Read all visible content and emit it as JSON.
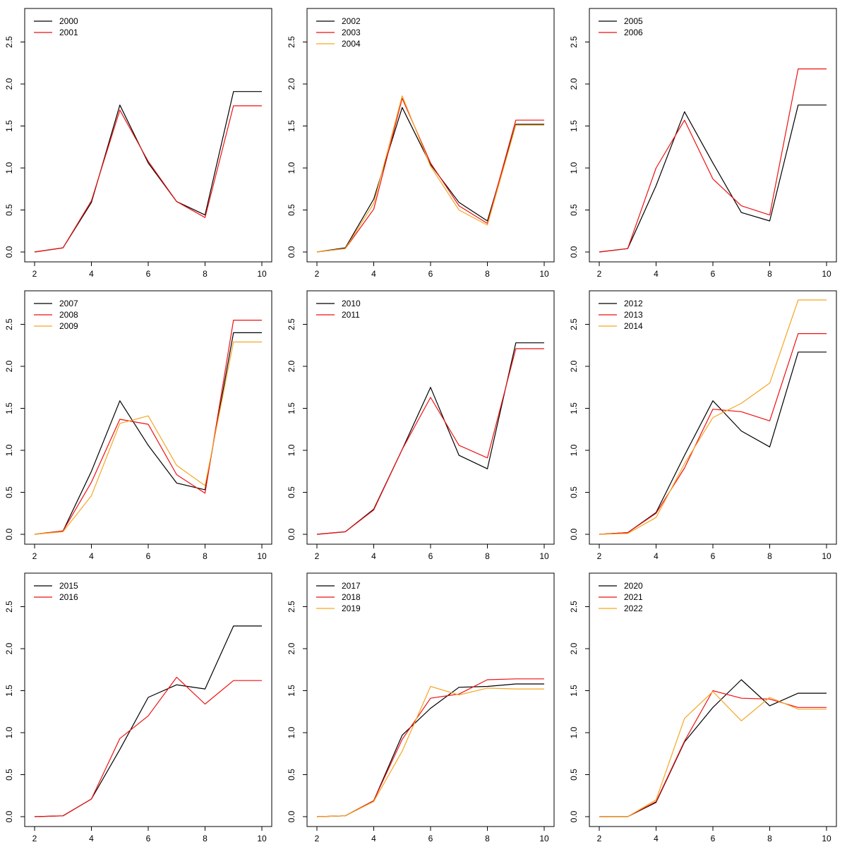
{
  "chart_data": [
    {
      "type": "line",
      "x": [
        2,
        3,
        4,
        5,
        6,
        7,
        8,
        9,
        10
      ],
      "xlim": [
        2,
        10
      ],
      "ylim": [
        0,
        2.8
      ],
      "xticks": [
        "2",
        "4",
        "6",
        "8",
        "10"
      ],
      "yticks": [
        "0.0",
        "0.5",
        "1.0",
        "1.5",
        "2.0",
        "2.5"
      ],
      "legend_position": "top-left",
      "series": [
        {
          "name": "2000",
          "color": "#000000",
          "values": [
            0.0,
            0.05,
            0.59,
            1.75,
            1.06,
            0.6,
            0.44,
            1.91,
            1.91
          ]
        },
        {
          "name": "2001",
          "color": "#ee1111",
          "values": [
            0.0,
            0.05,
            0.61,
            1.69,
            1.08,
            0.6,
            0.41,
            1.74,
            1.74
          ]
        }
      ]
    },
    {
      "type": "line",
      "x": [
        2,
        3,
        4,
        5,
        6,
        7,
        8,
        9,
        10
      ],
      "xlim": [
        2,
        10
      ],
      "ylim": [
        0,
        2.8
      ],
      "xticks": [
        "2",
        "4",
        "6",
        "8",
        "10"
      ],
      "yticks": [
        "0.0",
        "0.5",
        "1.0",
        "1.5",
        "2.0",
        "2.5"
      ],
      "legend_position": "top-left",
      "series": [
        {
          "name": "2002",
          "color": "#000000",
          "values": [
            0.0,
            0.05,
            0.63,
            1.72,
            1.04,
            0.59,
            0.37,
            1.52,
            1.52
          ]
        },
        {
          "name": "2003",
          "color": "#ee1111",
          "values": [
            0.0,
            0.04,
            0.51,
            1.83,
            1.06,
            0.55,
            0.34,
            1.57,
            1.57
          ]
        },
        {
          "name": "2004",
          "color": "#f5a623",
          "values": [
            0.0,
            0.04,
            0.58,
            1.86,
            1.02,
            0.5,
            0.32,
            1.51,
            1.51
          ]
        }
      ]
    },
    {
      "type": "line",
      "x": [
        2,
        3,
        4,
        5,
        6,
        7,
        8,
        9,
        10
      ],
      "xlim": [
        2,
        10
      ],
      "ylim": [
        0,
        2.8
      ],
      "xticks": [
        "2",
        "4",
        "6",
        "8",
        "10"
      ],
      "yticks": [
        "0.0",
        "0.5",
        "1.0",
        "1.5",
        "2.0",
        "2.5"
      ],
      "legend_position": "top-left",
      "series": [
        {
          "name": "2005",
          "color": "#000000",
          "values": [
            0.0,
            0.04,
            0.79,
            1.67,
            1.06,
            0.47,
            0.37,
            1.75,
            1.75
          ]
        },
        {
          "name": "2006",
          "color": "#ee1111",
          "values": [
            0.0,
            0.04,
            1.0,
            1.57,
            0.87,
            0.55,
            0.44,
            2.18,
            2.18
          ]
        }
      ]
    },
    {
      "type": "line",
      "x": [
        2,
        3,
        4,
        5,
        6,
        7,
        8,
        9,
        10
      ],
      "xlim": [
        2,
        10
      ],
      "ylim": [
        0,
        2.8
      ],
      "xticks": [
        "2",
        "4",
        "6",
        "8",
        "10"
      ],
      "yticks": [
        "0.0",
        "0.5",
        "1.0",
        "1.5",
        "2.0",
        "2.5"
      ],
      "legend_position": "top-left",
      "series": [
        {
          "name": "2007",
          "color": "#000000",
          "values": [
            0.0,
            0.04,
            0.75,
            1.59,
            1.06,
            0.61,
            0.53,
            2.4,
            2.4
          ]
        },
        {
          "name": "2008",
          "color": "#ee1111",
          "values": [
            0.0,
            0.04,
            0.62,
            1.37,
            1.31,
            0.71,
            0.49,
            2.55,
            2.55
          ]
        },
        {
          "name": "2009",
          "color": "#f5a623",
          "values": [
            0.0,
            0.03,
            0.46,
            1.32,
            1.41,
            0.82,
            0.58,
            2.29,
            2.29
          ]
        }
      ]
    },
    {
      "type": "line",
      "x": [
        2,
        3,
        4,
        5,
        6,
        7,
        8,
        9,
        10
      ],
      "xlim": [
        2,
        10
      ],
      "ylim": [
        0,
        2.8
      ],
      "xticks": [
        "2",
        "4",
        "6",
        "8",
        "10"
      ],
      "yticks": [
        "0.0",
        "0.5",
        "1.0",
        "1.5",
        "2.0",
        "2.5"
      ],
      "legend_position": "top-left",
      "series": [
        {
          "name": "2010",
          "color": "#000000",
          "values": [
            0.0,
            0.03,
            0.3,
            1.01,
            1.75,
            0.94,
            0.78,
            2.28,
            2.28
          ]
        },
        {
          "name": "2011",
          "color": "#ee1111",
          "values": [
            0.0,
            0.03,
            0.29,
            1.01,
            1.63,
            1.06,
            0.91,
            2.21,
            2.21
          ]
        }
      ]
    },
    {
      "type": "line",
      "x": [
        2,
        3,
        4,
        5,
        6,
        7,
        8,
        9,
        10
      ],
      "xlim": [
        2,
        10
      ],
      "ylim": [
        0,
        2.8
      ],
      "xticks": [
        "2",
        "4",
        "6",
        "8",
        "10"
      ],
      "yticks": [
        "0.0",
        "0.5",
        "1.0",
        "1.5",
        "2.0",
        "2.5"
      ],
      "legend_position": "top-left",
      "series": [
        {
          "name": "2012",
          "color": "#000000",
          "values": [
            0.0,
            0.02,
            0.26,
            0.94,
            1.59,
            1.23,
            1.04,
            2.17,
            2.17
          ]
        },
        {
          "name": "2013",
          "color": "#ee1111",
          "values": [
            0.0,
            0.02,
            0.25,
            0.79,
            1.49,
            1.46,
            1.35,
            2.39,
            2.39
          ]
        },
        {
          "name": "2014",
          "color": "#f5a623",
          "values": [
            0.0,
            0.01,
            0.2,
            0.84,
            1.39,
            1.56,
            1.8,
            2.79,
            2.79
          ]
        }
      ]
    },
    {
      "type": "line",
      "x": [
        2,
        3,
        4,
        5,
        6,
        7,
        8,
        9,
        10
      ],
      "xlim": [
        2,
        10
      ],
      "ylim": [
        0,
        2.8
      ],
      "xticks": [
        "2",
        "4",
        "6",
        "8",
        "10"
      ],
      "yticks": [
        "0.0",
        "0.5",
        "1.0",
        "1.5",
        "2.0",
        "2.5"
      ],
      "legend_position": "top-left",
      "series": [
        {
          "name": "2015",
          "color": "#000000",
          "values": [
            0.0,
            0.01,
            0.21,
            0.8,
            1.42,
            1.57,
            1.52,
            2.27,
            2.27
          ]
        },
        {
          "name": "2016",
          "color": "#ee1111",
          "values": [
            0.0,
            0.01,
            0.21,
            0.93,
            1.2,
            1.66,
            1.34,
            1.62,
            1.62
          ]
        }
      ]
    },
    {
      "type": "line",
      "x": [
        2,
        3,
        4,
        5,
        6,
        7,
        8,
        9,
        10
      ],
      "xlim": [
        2,
        10
      ],
      "ylim": [
        0,
        2.8
      ],
      "xticks": [
        "2",
        "4",
        "6",
        "8",
        "10"
      ],
      "yticks": [
        "0.0",
        "0.5",
        "1.0",
        "1.5",
        "2.0",
        "2.5"
      ],
      "legend_position": "top-left",
      "series": [
        {
          "name": "2017",
          "color": "#000000",
          "values": [
            0.0,
            0.01,
            0.19,
            0.97,
            1.29,
            1.54,
            1.55,
            1.58,
            1.58
          ]
        },
        {
          "name": "2018",
          "color": "#ee1111",
          "values": [
            0.0,
            0.01,
            0.19,
            0.92,
            1.41,
            1.46,
            1.63,
            1.64,
            1.64
          ]
        },
        {
          "name": "2019",
          "color": "#f5a623",
          "values": [
            0.0,
            0.01,
            0.18,
            0.78,
            1.55,
            1.45,
            1.53,
            1.52,
            1.52
          ]
        }
      ]
    },
    {
      "type": "line",
      "x": [
        2,
        3,
        4,
        5,
        6,
        7,
        8,
        9,
        10
      ],
      "xlim": [
        2,
        10
      ],
      "ylim": [
        0,
        2.8
      ],
      "xticks": [
        "2",
        "4",
        "6",
        "8",
        "10"
      ],
      "yticks": [
        "0.0",
        "0.5",
        "1.0",
        "1.5",
        "2.0",
        "2.5"
      ],
      "legend_position": "top-left",
      "series": [
        {
          "name": "2020",
          "color": "#000000",
          "values": [
            0.0,
            0.0,
            0.17,
            0.89,
            1.3,
            1.63,
            1.32,
            1.47,
            1.47
          ]
        },
        {
          "name": "2021",
          "color": "#ee1111",
          "values": [
            0.0,
            0.0,
            0.18,
            0.9,
            1.5,
            1.41,
            1.4,
            1.3,
            1.3
          ]
        },
        {
          "name": "2022",
          "color": "#f5a623",
          "values": [
            0.0,
            0.0,
            0.2,
            1.17,
            1.49,
            1.14,
            1.42,
            1.28,
            1.28
          ]
        }
      ]
    }
  ]
}
